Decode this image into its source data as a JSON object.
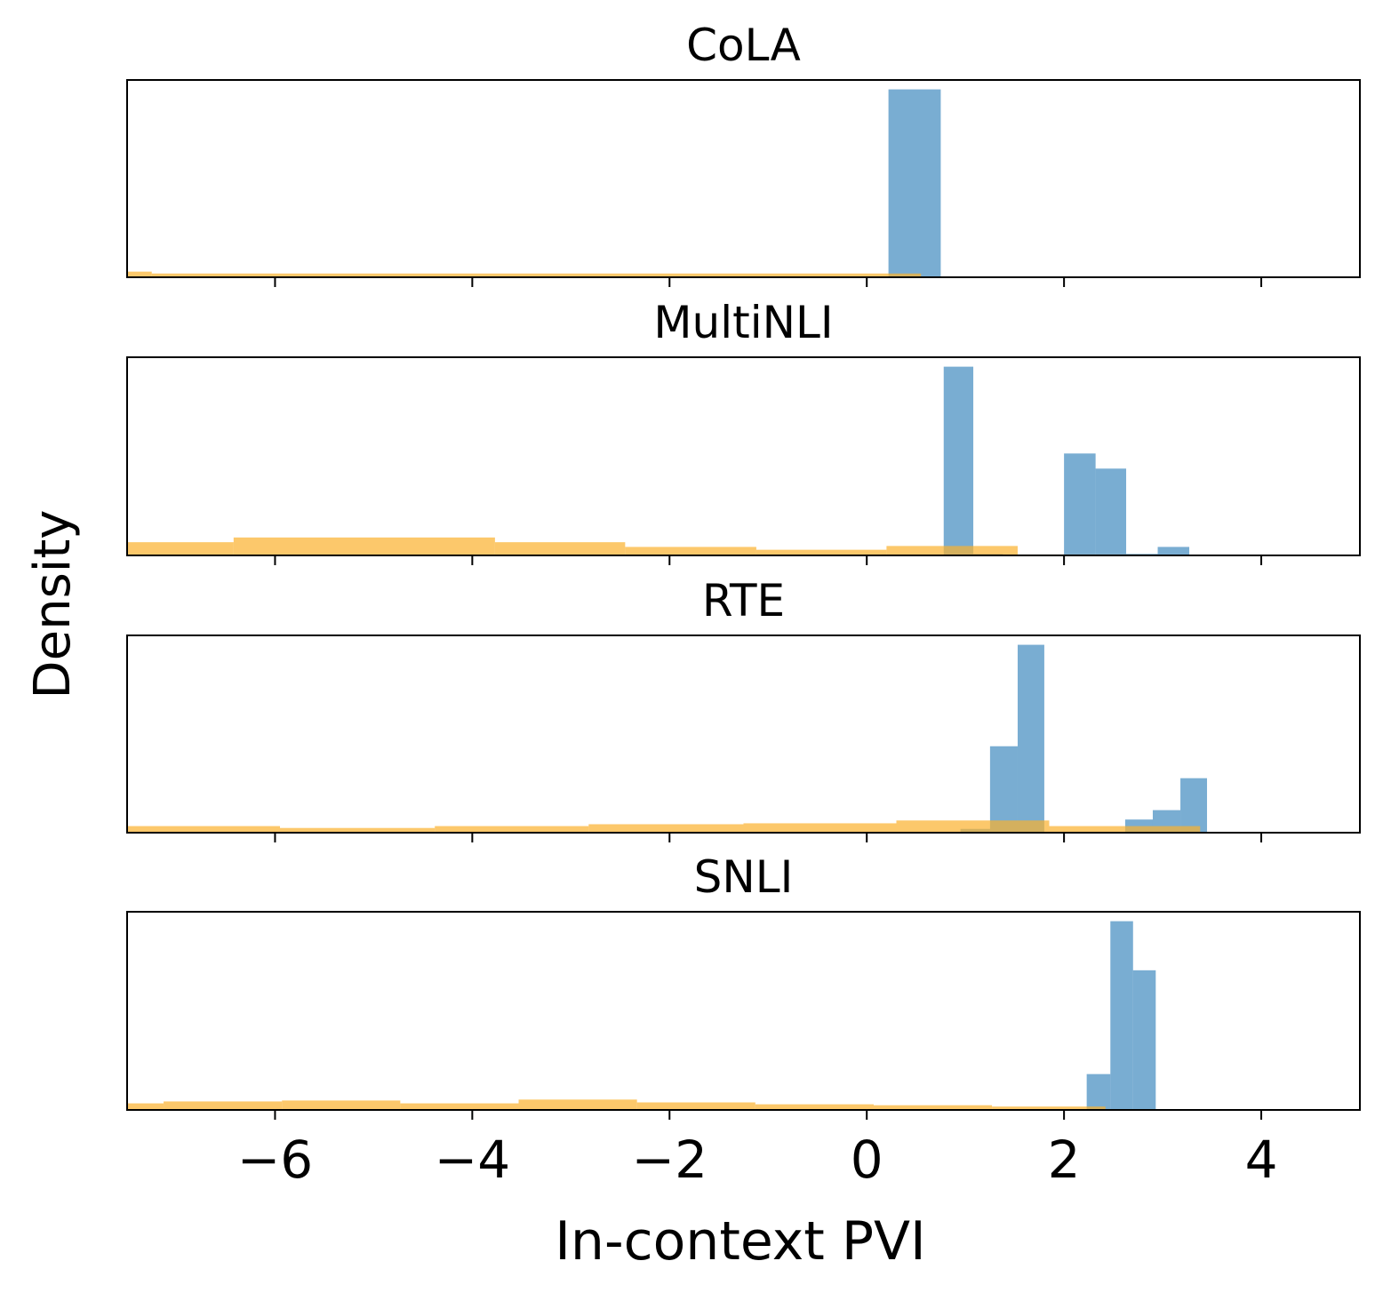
{
  "figure": {
    "xlabel": "In-context PVI",
    "ylabel": "Density"
  },
  "colors": {
    "series_a": "#1f77b4",
    "series_b": "#fbb12c"
  },
  "chart_data": [
    {
      "type": "bar",
      "title": "CoLA",
      "xlim": [
        -7.5,
        5.0
      ],
      "ylim": [
        0,
        1.05
      ],
      "xticks": [
        -6,
        -4,
        -2,
        0,
        2,
        4
      ],
      "tick_labels_shown": false,
      "yticks_shown": false,
      "series": [
        {
          "color_key": "series_a",
          "opacity": 0.6,
          "bins": [
            [
              0.22,
              0.75,
              1.0
            ]
          ]
        },
        {
          "color_key": "series_b",
          "opacity": 0.7,
          "bins": [
            [
              -7.5,
              -7.25,
              0.03
            ],
            [
              -7.25,
              0.55,
              0.02
            ]
          ]
        }
      ]
    },
    {
      "type": "bar",
      "title": "MultiNLI",
      "xlim": [
        -7.5,
        5.0
      ],
      "ylim": [
        0,
        1.05
      ],
      "xticks": [
        -6,
        -4,
        -2,
        0,
        2,
        4
      ],
      "tick_labels_shown": false,
      "yticks_shown": false,
      "series": [
        {
          "color_key": "series_a",
          "opacity": 0.6,
          "bins": [
            [
              0.15,
              0.78,
              0.005
            ],
            [
              0.78,
              1.08,
              1.0
            ],
            [
              1.08,
              1.38,
              0.008
            ],
            [
              1.38,
              2.0,
              0.005
            ],
            [
              2.0,
              2.32,
              0.54
            ],
            [
              2.32,
              2.63,
              0.46
            ],
            [
              2.63,
              2.95,
              0.008
            ],
            [
              2.95,
              3.27,
              0.045
            ]
          ]
        },
        {
          "color_key": "series_b",
          "opacity": 0.7,
          "bins": [
            [
              -7.5,
              -6.42,
              0.07
            ],
            [
              -6.42,
              -3.77,
              0.095
            ],
            [
              -3.77,
              -2.45,
              0.07
            ],
            [
              -2.45,
              -1.12,
              0.045
            ],
            [
              -1.12,
              0.2,
              0.03
            ],
            [
              0.2,
              1.53,
              0.05
            ],
            [
              1.53,
              2.85,
              0.005
            ]
          ]
        }
      ]
    },
    {
      "type": "bar",
      "title": "RTE",
      "xlim": [
        -7.5,
        5.0
      ],
      "ylim": [
        0,
        1.05
      ],
      "xticks": [
        -6,
        -4,
        -2,
        0,
        2,
        4
      ],
      "tick_labels_shown": false,
      "yticks_shown": false,
      "series": [
        {
          "color_key": "series_a",
          "opacity": 0.6,
          "bins": [
            [
              0.95,
              1.25,
              0.02
            ],
            [
              1.25,
              1.53,
              0.46
            ],
            [
              1.53,
              1.8,
              1.0
            ],
            [
              1.8,
              2.62,
              0.005
            ],
            [
              2.62,
              2.9,
              0.07
            ],
            [
              2.9,
              3.18,
              0.12
            ],
            [
              3.18,
              3.45,
              0.29
            ]
          ]
        },
        {
          "color_key": "series_b",
          "opacity": 0.7,
          "bins": [
            [
              -7.5,
              -5.95,
              0.035
            ],
            [
              -5.95,
              -4.38,
              0.025
            ],
            [
              -4.38,
              -2.82,
              0.035
            ],
            [
              -2.82,
              -1.25,
              0.045
            ],
            [
              -1.25,
              0.3,
              0.05
            ],
            [
              0.3,
              1.85,
              0.065
            ],
            [
              1.85,
              3.38,
              0.035
            ]
          ]
        }
      ]
    },
    {
      "type": "bar",
      "title": "SNLI",
      "xlim": [
        -7.5,
        5.0
      ],
      "ylim": [
        0,
        1.05
      ],
      "xticks": [
        -6,
        -4,
        -2,
        0,
        2,
        4
      ],
      "tick_labels_shown": false,
      "yticks_shown": true,
      "x_tick_labels": [
        "−6",
        "−4",
        "−2",
        "0",
        "2",
        "4"
      ],
      "series": [
        {
          "color_key": "series_a",
          "opacity": 0.6,
          "bins": [
            [
              2.23,
              2.47,
              0.19
            ],
            [
              2.47,
              2.7,
              1.0
            ],
            [
              2.7,
              2.93,
              0.74
            ]
          ]
        },
        {
          "color_key": "series_b",
          "opacity": 0.7,
          "bins": [
            [
              -7.5,
              -7.13,
              0.035
            ],
            [
              -7.13,
              -5.93,
              0.045
            ],
            [
              -5.93,
              -4.73,
              0.05
            ],
            [
              -4.73,
              -3.53,
              0.035
            ],
            [
              -3.53,
              -2.33,
              0.055
            ],
            [
              -2.33,
              -1.13,
              0.04
            ],
            [
              -1.13,
              0.07,
              0.03
            ],
            [
              0.07,
              1.27,
              0.025
            ],
            [
              1.27,
              2.42,
              0.018
            ]
          ]
        }
      ]
    }
  ]
}
